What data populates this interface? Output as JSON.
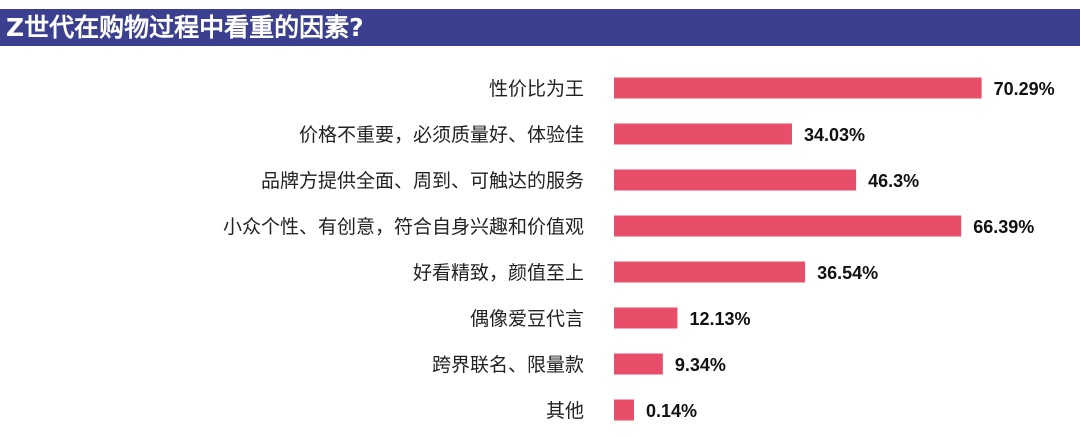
{
  "title": "Z世代在购物过程中看重的因素?",
  "colors": {
    "title_bg": "#3b3f8f",
    "title_text": "#ffffff",
    "bar": "#e84e6a"
  },
  "chart_data": {
    "type": "bar",
    "orientation": "horizontal",
    "title": "Z世代在购物过程中看重的因素?",
    "categories": [
      "性价比为王",
      "价格不重要，必须质量好、体验佳",
      "品牌方提供全面、周到、可触达的服务",
      "小众个性、有创意，符合自身兴趣和价值观",
      "好看精致，颜值至上",
      "偶像爱豆代言",
      "跨界联名、限量款",
      "其他"
    ],
    "values": [
      70.29,
      34.03,
      46.3,
      66.39,
      36.54,
      12.13,
      9.34,
      0.14
    ],
    "value_labels": [
      "70.29%",
      "34.03%",
      "46.3%",
      "66.39%",
      "36.54%",
      "12.13%",
      "9.34%",
      "0.14%"
    ],
    "unit": "%",
    "xlim": [
      0,
      100
    ],
    "grid": false,
    "legend": "none"
  }
}
